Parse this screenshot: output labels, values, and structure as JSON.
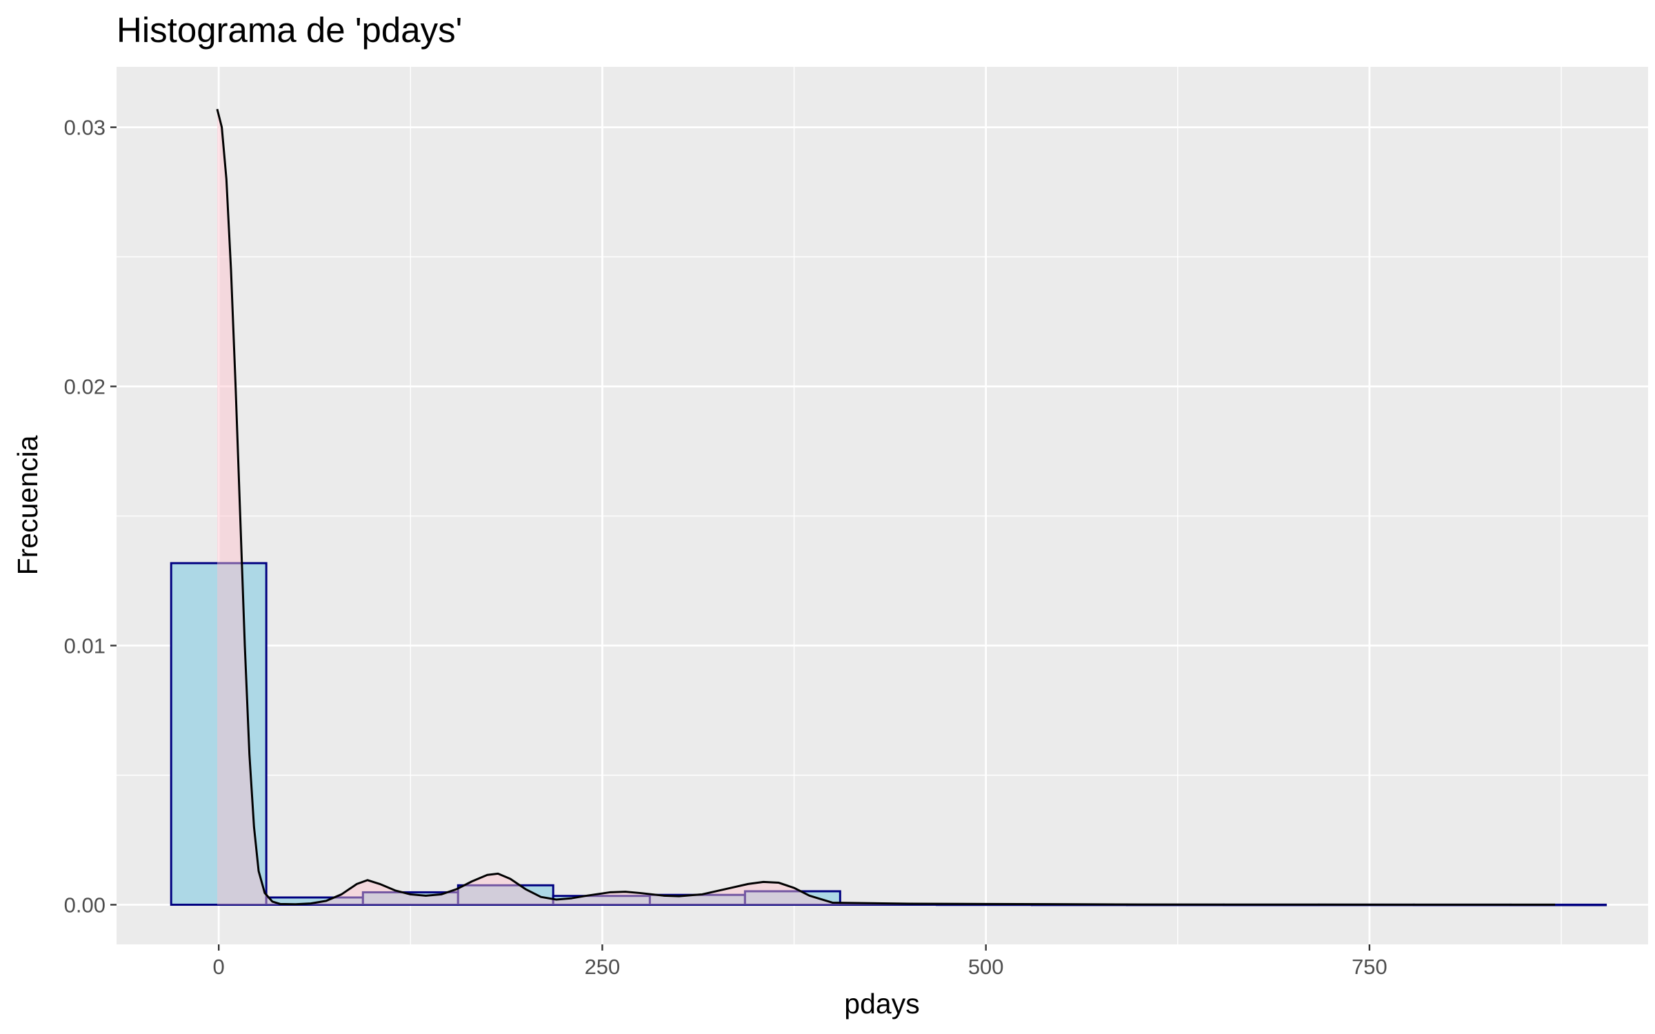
{
  "chart_data": {
    "type": "bar",
    "title": "Histograma de 'pdays'",
    "xlabel": "pdays",
    "ylabel": "Frecuencia",
    "xlim": [
      -66.6,
      931.6
    ],
    "ylim": [
      -0.00153,
      0.03233
    ],
    "x_ticks": [
      0,
      250,
      500,
      750
    ],
    "x_tick_labels": [
      "0",
      "250",
      "500",
      "750"
    ],
    "y_ticks": [
      0.0,
      0.01,
      0.02,
      0.03
    ],
    "y_tick_labels": [
      "0.00",
      "0.01",
      "0.02",
      "0.03"
    ],
    "grid": true,
    "legend": "none",
    "colors": {
      "panel_background": "#ebebeb",
      "grid": "#ffffff",
      "bar_fill": "#add8e6",
      "bar_outline": "#000080",
      "density_fill": "#ffc0cb",
      "density_line": "#000000",
      "tick_text": "#4d4d4d"
    },
    "series": [
      {
        "kind": "histogram",
        "bins": [
          {
            "start": -31,
            "end": 31,
            "value": 0.01318
          },
          {
            "start": 31,
            "end": 94,
            "value": 0.00028
          },
          {
            "start": 94,
            "end": 156,
            "value": 0.00048
          },
          {
            "start": 156,
            "end": 218,
            "value": 0.00075
          },
          {
            "start": 218,
            "end": 281,
            "value": 0.00034
          },
          {
            "start": 281,
            "end": 343,
            "value": 0.00038
          },
          {
            "start": 343,
            "end": 405,
            "value": 0.00052
          },
          {
            "start": 405,
            "end": 468,
            "value": 2e-05
          },
          {
            "start": 468,
            "end": 530,
            "value": 1e-05
          },
          {
            "start": 530,
            "end": 592,
            "value": 5e-06
          },
          {
            "start": 592,
            "end": 655,
            "value": 3e-06
          },
          {
            "start": 655,
            "end": 717,
            "value": 2e-06
          },
          {
            "start": 717,
            "end": 779,
            "value": 3e-06
          },
          {
            "start": 779,
            "end": 842,
            "value": 2e-06
          },
          {
            "start": 842,
            "end": 904,
            "value": 1e-06
          }
        ]
      },
      {
        "kind": "density",
        "x": [
          -1,
          2,
          5,
          8,
          11,
          14,
          17,
          20,
          23,
          26,
          30,
          35,
          40,
          50,
          60,
          70,
          80,
          90,
          97,
          105,
          115,
          125,
          135,
          145,
          155,
          165,
          175,
          182,
          190,
          200,
          210,
          220,
          230,
          240,
          255,
          265,
          275,
          290,
          300,
          315,
          330,
          345,
          355,
          365,
          375,
          385,
          400,
          450,
          500,
          600,
          700,
          800,
          871
        ],
        "y": [
          0.0307,
          0.03,
          0.028,
          0.0245,
          0.02,
          0.015,
          0.01,
          0.0058,
          0.003,
          0.0013,
          0.00045,
          0.00012,
          3e-05,
          2e-05,
          5e-05,
          0.00015,
          0.0004,
          0.0008,
          0.00095,
          0.0008,
          0.00055,
          0.0004,
          0.00035,
          0.0004,
          0.0006,
          0.0009,
          0.00115,
          0.0012,
          0.001,
          0.0006,
          0.0003,
          0.0002,
          0.00025,
          0.00035,
          0.00048,
          0.0005,
          0.00045,
          0.00035,
          0.00033,
          0.0004,
          0.0006,
          0.0008,
          0.00088,
          0.00085,
          0.00065,
          0.00035,
          8e-05,
          4e-05,
          3e-05,
          1e-05,
          5e-06,
          4e-06,
          2e-06
        ]
      }
    ]
  }
}
